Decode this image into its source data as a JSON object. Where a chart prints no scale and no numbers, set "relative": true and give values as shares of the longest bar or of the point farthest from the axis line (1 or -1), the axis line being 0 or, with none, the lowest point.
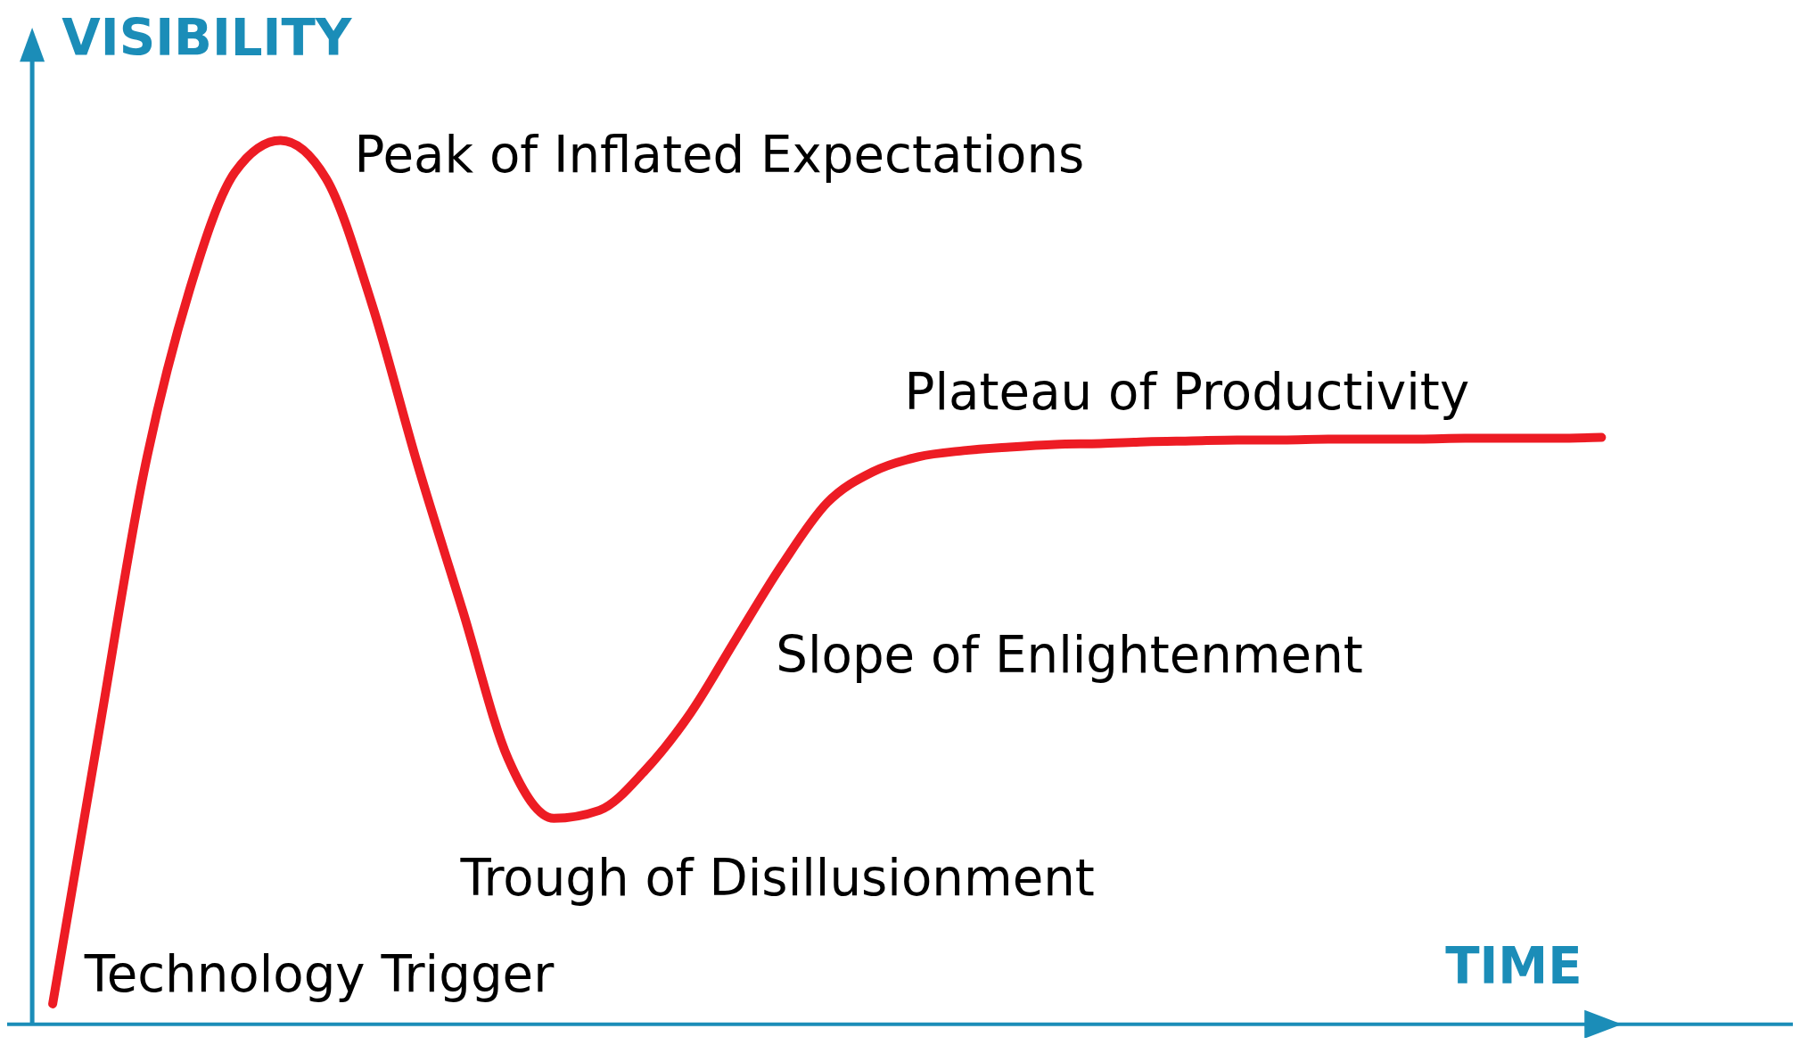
{
  "chart_data": {
    "type": "line",
    "relative": true,
    "xlabel": "TIME",
    "ylabel": "VISIBILITY",
    "categories": [
      null,
      null,
      null,
      null,
      null,
      null,
      null,
      null,
      null,
      null,
      null,
      null,
      null,
      null,
      null,
      null,
      null,
      null,
      null,
      null,
      null,
      null,
      null,
      null,
      null,
      null,
      null,
      null,
      null,
      null,
      null,
      null,
      null,
      null,
      null
    ],
    "series": [
      {
        "color": "#ed1c24",
        "values": [
          0.023,
          0.326,
          0.624,
          0.83,
          0.964,
          1.0,
          0.957,
          0.816,
          0.635,
          0.468,
          0.3,
          0.233,
          0.242,
          0.287,
          0.352,
          0.436,
          0.519,
          0.59,
          0.625,
          0.642,
          0.649,
          0.653,
          0.656,
          0.657,
          0.659,
          0.66,
          0.661,
          0.661,
          0.662,
          0.662,
          0.662,
          0.663,
          0.663,
          0.663,
          0.664
        ]
      }
    ],
    "annotations": [
      "Peak of Inflated Expectations",
      "Plateau of Productivity",
      "Slope of Enlightenment",
      "Trough of Disillusionment",
      "Technology Trigger"
    ],
    "marker": "none",
    "line_style": "solid"
  }
}
